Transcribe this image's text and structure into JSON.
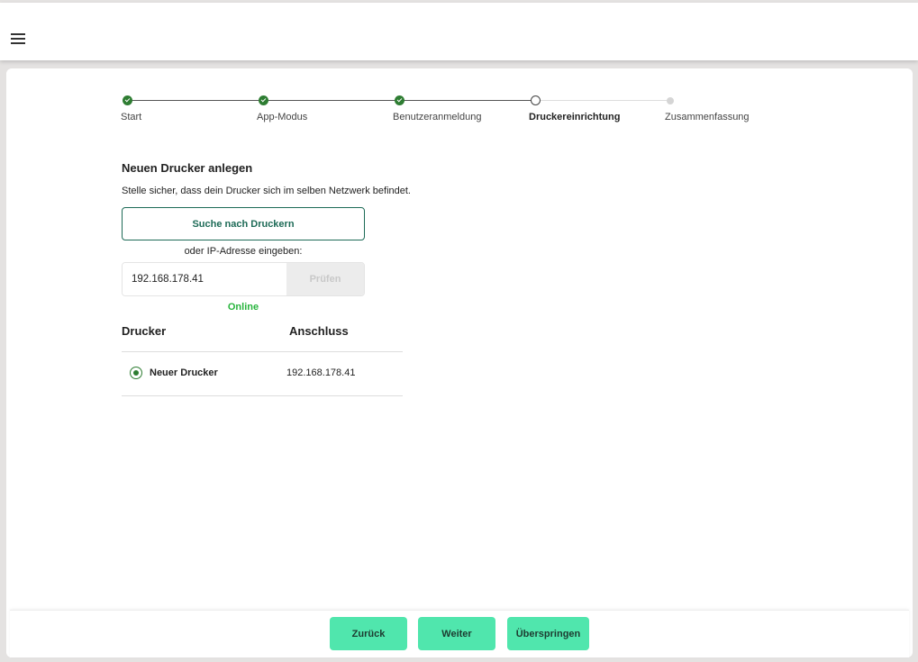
{
  "header": {
    "menu_icon": "hamburger-icon"
  },
  "stepper": {
    "steps": [
      {
        "label": "Start",
        "state": "done"
      },
      {
        "label": "App-Modus",
        "state": "done"
      },
      {
        "label": "Benutzeranmeldung",
        "state": "done"
      },
      {
        "label": "Druckereinrichtung",
        "state": "current"
      },
      {
        "label": "Zusammenfassung",
        "state": "todo"
      }
    ]
  },
  "form": {
    "title": "Neuen Drucker anlegen",
    "description": "Stelle sicher, dass dein Drucker sich im selben Netzwerk befindet.",
    "search_label": "Suche nach Druckern",
    "or_label": "oder IP-Adresse eingeben:",
    "ip_value": "192.168.178.41",
    "check_label": "Prüfen",
    "status": "Online"
  },
  "table": {
    "headers": [
      "Drucker",
      "Anschluss"
    ],
    "rows": [
      {
        "name": "Neuer Drucker",
        "port": "192.168.178.41",
        "selected": true
      }
    ]
  },
  "footer": {
    "back": "Zurück",
    "next": "Weiter",
    "skip": "Überspringen"
  },
  "colors": {
    "accent": "#2e7d32",
    "button": "#50e6ad",
    "online": "#27b43c",
    "outline": "#1e6b57"
  }
}
